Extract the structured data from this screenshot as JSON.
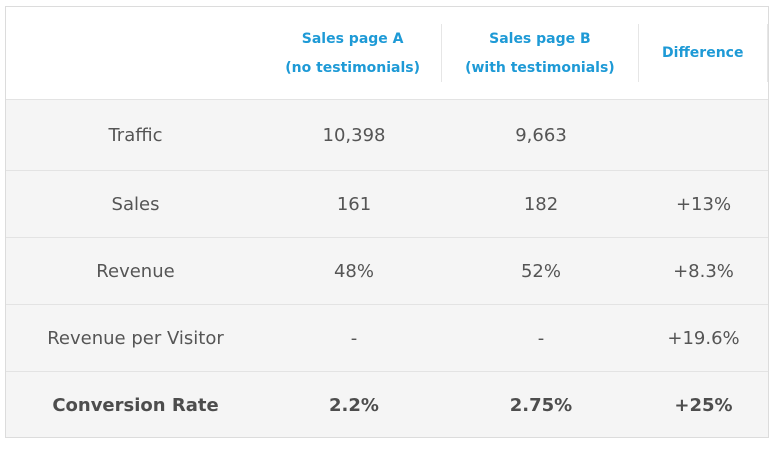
{
  "header": {
    "col_a_line1": "Sales page A",
    "col_a_line2": "(no testimonials)",
    "col_b_line1": "Sales page B",
    "col_b_line2": "(with testimonials)",
    "col_diff": "Difference"
  },
  "rows": [
    {
      "label": "Traffic",
      "a": "10,398",
      "b": "9,663",
      "diff": ""
    },
    {
      "label": "Sales",
      "a": "161",
      "b": "182",
      "diff": "+13%"
    },
    {
      "label": "Revenue",
      "a": "48%",
      "b": "52%",
      "diff": "+8.3%"
    },
    {
      "label": "Revenue per Visitor",
      "a": "-",
      "b": "-",
      "diff": "+19.6%"
    },
    {
      "label": "Conversion Rate",
      "a": "2.2%",
      "b": "2.75%",
      "diff": "+25%"
    }
  ],
  "colors": {
    "header_text": "#1e9ad6",
    "body_text": "#555555",
    "row_bg": "#f5f5f5",
    "header_bg": "#ffffff"
  }
}
